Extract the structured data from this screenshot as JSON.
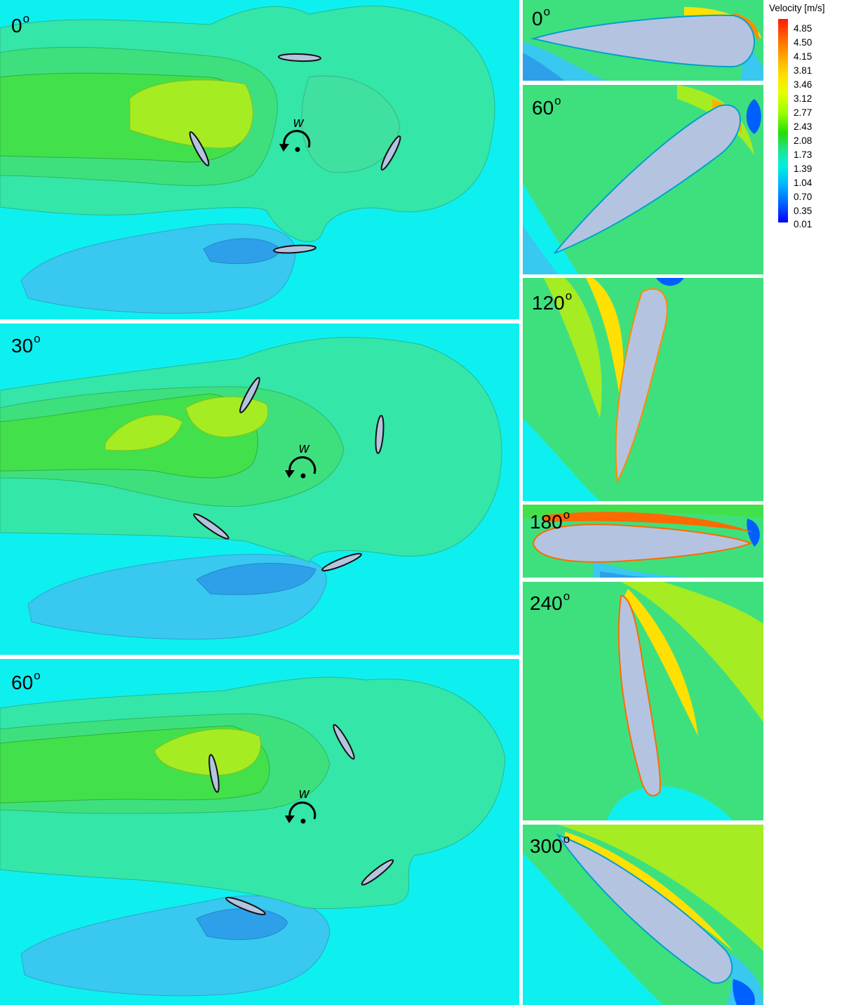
{
  "main_panels": [
    {
      "label": "0",
      "omega": "w"
    },
    {
      "label": "30",
      "omega": "w"
    },
    {
      "label": "60",
      "omega": "w"
    }
  ],
  "detail_panels": [
    {
      "label": "0"
    },
    {
      "label": "60"
    },
    {
      "label": "120"
    },
    {
      "label": "180"
    },
    {
      "label": "240"
    },
    {
      "label": "300"
    }
  ],
  "degree_symbol": "o",
  "legend": {
    "title": "Velocity [m/s]",
    "ticks": [
      "4.85",
      "4.50",
      "4.15",
      "3.81",
      "3.46",
      "3.12",
      "2.77",
      "2.43",
      "2.08",
      "1.73",
      "1.39",
      "1.04",
      "0.70",
      "0.35",
      "0.01"
    ]
  },
  "colors": {
    "background_cyan": "#0ef0f0",
    "wake_blue": "#38c8f0",
    "mid_green": "#3ee07e",
    "green": "#3fe23a",
    "yellow_green": "#a6ec22",
    "airfoil": "#b4c4e0"
  }
}
